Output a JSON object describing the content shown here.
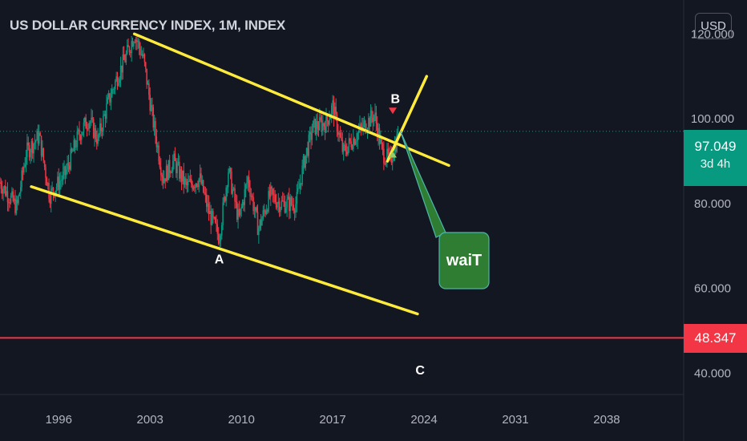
{
  "header": {
    "title": "US DOLLAR CURRENCY INDEX, 1M, INDEX",
    "currency": "USD"
  },
  "colors": {
    "background": "#131722",
    "up": "#089981",
    "down": "#f23645",
    "channel": "#ffeb3b",
    "note": "#2e7d32",
    "horizontal_line": "#f23645",
    "crosshair": "#089981"
  },
  "price_scale": {
    "last_price": "97.049",
    "countdown": "3d 4h",
    "horizontal_line_price": "48.347"
  },
  "annotations": {
    "note_text": "waiT",
    "wave_labels": [
      "A",
      "B",
      "C"
    ]
  },
  "chart_data": {
    "type": "candlestick",
    "title": "US DOLLAR CURRENCY INDEX, 1M, INDEX",
    "x_ticks": [
      "1996",
      "2003",
      "2010",
      "2017",
      "2024",
      "2031",
      "2038"
    ],
    "y_ticks": [
      "40.000",
      "60.000",
      "80.000",
      "100.000",
      "120.000"
    ],
    "xlim": [
      1991.5,
      2043.9
    ],
    "ylim": [
      35.0,
      128.0
    ],
    "grid": false,
    "price_path": [
      [
        1991.5,
        85
      ],
      [
        1992.8,
        79
      ],
      [
        1993.5,
        92
      ],
      [
        1994.5,
        96
      ],
      [
        1995.3,
        82
      ],
      [
        1996.5,
        87
      ],
      [
        1997.5,
        96
      ],
      [
        1998.3,
        100
      ],
      [
        1999.0,
        95
      ],
      [
        1999.8,
        104
      ],
      [
        2000.5,
        110
      ],
      [
        2001.2,
        115
      ],
      [
        2001.8,
        120
      ],
      [
        2002.5,
        114
      ],
      [
        2003.2,
        100
      ],
      [
        2004.0,
        86
      ],
      [
        2004.8,
        90
      ],
      [
        2005.8,
        84
      ],
      [
        2006.8,
        86
      ],
      [
        2007.5,
        78
      ],
      [
        2008.3,
        72
      ],
      [
        2009.0,
        88
      ],
      [
        2009.8,
        76
      ],
      [
        2010.5,
        86
      ],
      [
        2011.3,
        74
      ],
      [
        2012.2,
        82
      ],
      [
        2013.0,
        80
      ],
      [
        2014.2,
        80
      ],
      [
        2014.8,
        90
      ],
      [
        2015.5,
        98
      ],
      [
        2016.5,
        99
      ],
      [
        2017.0,
        103
      ],
      [
        2017.8,
        92
      ],
      [
        2018.5,
        95
      ],
      [
        2019.3,
        98
      ],
      [
        2020.2,
        101
      ],
      [
        2020.8,
        92
      ],
      [
        2021.4,
        90
      ],
      [
        2022.0,
        96
      ]
    ],
    "last_price": 97.049,
    "wave_points": [
      {
        "label": "A",
        "x": 2008.3,
        "y": 72
      },
      {
        "label": "B",
        "x": 2021.8,
        "y": 103
      },
      {
        "label": "C",
        "x": 2023.7,
        "y": 39
      }
    ],
    "channel_lines": [
      {
        "from": [
          2001.8,
          120
        ],
        "to": [
          2025.9,
          89
        ]
      },
      {
        "from": [
          1993.9,
          84
        ],
        "to": [
          2023.5,
          54
        ]
      }
    ],
    "breakout_line": {
      "from": [
        2021.2,
        90
      ],
      "to": [
        2024.2,
        110
      ]
    },
    "horizontal_line": 48.347
  }
}
